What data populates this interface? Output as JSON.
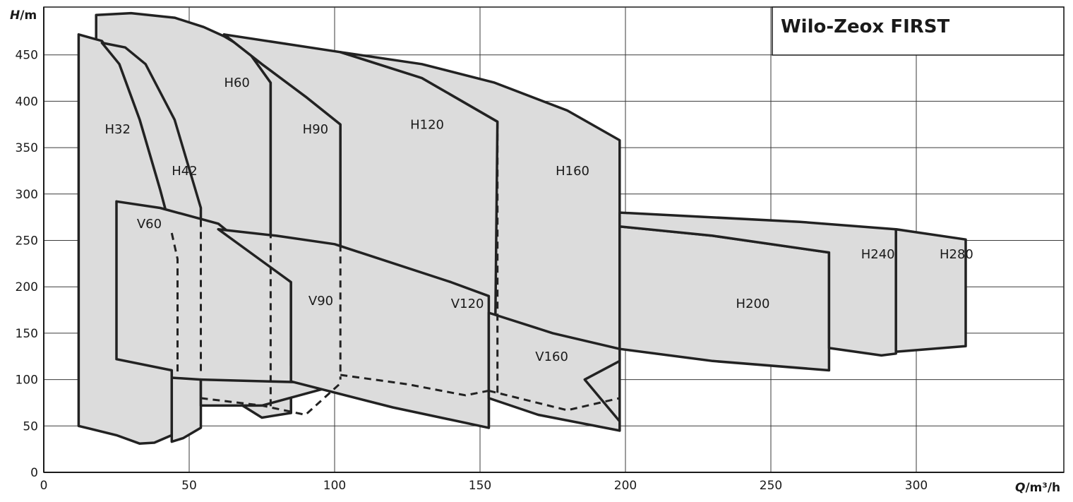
{
  "chart_data": {
    "type": "area",
    "title": "Wilo-Zeox FIRST",
    "xlabel_var": "Q",
    "xlabel_unit": "/m³/h",
    "ylabel_var": "H",
    "ylabel_unit": "/m",
    "xlim": [
      0,
      350
    ],
    "ylim": [
      0,
      500
    ],
    "xticks": [
      0,
      50,
      100,
      150,
      200,
      250,
      300
    ],
    "yticks": [
      0,
      50,
      100,
      150,
      200,
      250,
      300,
      350,
      400,
      450
    ],
    "grid": true,
    "regions": [
      {
        "name": "H60",
        "label_at": [
          62,
          420
        ],
        "points": [
          [
            18,
            442
          ],
          [
            18,
            493
          ],
          [
            30,
            495
          ],
          [
            45,
            490
          ],
          [
            55,
            480
          ],
          [
            62,
            470
          ],
          [
            70,
            455
          ],
          [
            78,
            420
          ],
          [
            78,
            70
          ],
          [
            54,
            80
          ],
          [
            54,
            104
          ],
          [
            44,
            104
          ],
          [
            44,
            230
          ],
          [
            35,
            330
          ],
          [
            25,
            420
          ],
          [
            18,
            442
          ]
        ]
      },
      {
        "name": "H90",
        "label_at": [
          89,
          370
        ],
        "points": [
          [
            62,
            472
          ],
          [
            70,
            455
          ],
          [
            78,
            420
          ],
          [
            78,
            70
          ],
          [
            85,
            64
          ],
          [
            85,
            205
          ],
          [
            102,
            180
          ],
          [
            102,
            375
          ],
          [
            90,
            405
          ],
          [
            75,
            440
          ],
          [
            62,
            472
          ]
        ]
      },
      {
        "name": "H120",
        "label_at": [
          126,
          375
        ],
        "points": [
          [
            62,
            472
          ],
          [
            102,
            453
          ],
          [
            130,
            425
          ],
          [
            156,
            378
          ],
          [
            156,
            80
          ],
          [
            102,
            96
          ],
          [
            102,
            375
          ],
          [
            90,
            405
          ],
          [
            75,
            440
          ],
          [
            62,
            472
          ]
        ]
      },
      {
        "name": "H160",
        "label_at": [
          176,
          325
        ],
        "points": [
          [
            102,
            453
          ],
          [
            130,
            440
          ],
          [
            155,
            420
          ],
          [
            180,
            390
          ],
          [
            198,
            358
          ],
          [
            198,
            45
          ],
          [
            185,
            62
          ],
          [
            155,
            82
          ],
          [
            156,
            378
          ],
          [
            130,
            425
          ],
          [
            102,
            453
          ]
        ]
      },
      {
        "name": "H32",
        "label_at": [
          21,
          370
        ],
        "points": [
          [
            12,
            50
          ],
          [
            12,
            472
          ],
          [
            20,
            465
          ],
          [
            26,
            440
          ],
          [
            33,
            380
          ],
          [
            40,
            305
          ],
          [
            44,
            258
          ],
          [
            44,
            40
          ],
          [
            38,
            32
          ],
          [
            33,
            31
          ],
          [
            25,
            40
          ],
          [
            12,
            50
          ]
        ]
      },
      {
        "name": "H42",
        "label_at": [
          44,
          325
        ],
        "points": [
          [
            20,
            463
          ],
          [
            28,
            458
          ],
          [
            35,
            440
          ],
          [
            45,
            380
          ],
          [
            54,
            285
          ],
          [
            54,
            48
          ],
          [
            48,
            37
          ],
          [
            44,
            33
          ],
          [
            44,
            258
          ],
          [
            40,
            305
          ],
          [
            33,
            380
          ],
          [
            26,
            440
          ],
          [
            20,
            463
          ]
        ]
      },
      {
        "name": "V60",
        "label_at": [
          32,
          268
        ],
        "points": [
          [
            25,
            292
          ],
          [
            40,
            285
          ],
          [
            60,
            268
          ],
          [
            85,
            205
          ],
          [
            85,
            64
          ],
          [
            75,
            59
          ],
          [
            54,
            100
          ],
          [
            44,
            102
          ],
          [
            44,
            110
          ],
          [
            25,
            122
          ],
          [
            25,
            292
          ]
        ]
      },
      {
        "name": "V90",
        "label_at": [
          91,
          185
        ],
        "points": [
          [
            54,
            100
          ],
          [
            102,
            96
          ],
          [
            120,
            90
          ],
          [
            153,
            48
          ],
          [
            153,
            80
          ],
          [
            102,
            96
          ],
          [
            85,
            115
          ],
          [
            85,
            205
          ],
          [
            102,
            180
          ],
          [
            97,
            145
          ],
          [
            102,
            95
          ],
          [
            75,
            72
          ],
          [
            54,
            72
          ],
          [
            54,
            100
          ]
        ]
      },
      {
        "name": "V120",
        "label_at": [
          140,
          182
        ],
        "points": [
          [
            60,
            262
          ],
          [
            80,
            255
          ],
          [
            100,
            246
          ],
          [
            140,
            205
          ],
          [
            153,
            190
          ],
          [
            153,
            48
          ],
          [
            120,
            70
          ],
          [
            85,
            98
          ],
          [
            85,
            205
          ],
          [
            60,
            262
          ]
        ]
      },
      {
        "name": "V160",
        "label_at": [
          169,
          125
        ],
        "points": [
          [
            153,
            172
          ],
          [
            175,
            150
          ],
          [
            198,
            133
          ],
          [
            198,
            120
          ],
          [
            186,
            100
          ],
          [
            198,
            55
          ],
          [
            198,
            45
          ],
          [
            170,
            62
          ],
          [
            153,
            80
          ],
          [
            153,
            172
          ]
        ]
      },
      {
        "name": "H200",
        "label_at": [
          238,
          182
        ],
        "points": [
          [
            198,
            265
          ],
          [
            230,
            255
          ],
          [
            270,
            237
          ],
          [
            270,
            110
          ],
          [
            230,
            120
          ],
          [
            198,
            133
          ],
          [
            198,
            265
          ]
        ]
      },
      {
        "name": "H240",
        "label_at": [
          281,
          235
        ],
        "points": [
          [
            198,
            280
          ],
          [
            260,
            270
          ],
          [
            293,
            262
          ],
          [
            293,
            128
          ],
          [
            288,
            126
          ],
          [
            270,
            134
          ],
          [
            270,
            237
          ],
          [
            230,
            255
          ],
          [
            198,
            265
          ],
          [
            198,
            280
          ]
        ]
      },
      {
        "name": "H280",
        "label_at": [
          308,
          235
        ],
        "points": [
          [
            293,
            262
          ],
          [
            317,
            251
          ],
          [
            317,
            136
          ],
          [
            293,
            130
          ],
          [
            293,
            262
          ]
        ]
      }
    ],
    "dashed_lines": [
      {
        "name": "dash-h42-upper",
        "points": [
          [
            44,
            258
          ],
          [
            46,
            230
          ],
          [
            46,
            105
          ]
        ]
      },
      {
        "name": "dash-h42-lower",
        "points": [
          [
            54,
            285
          ],
          [
            54,
            104
          ]
        ]
      },
      {
        "name": "dash-h60",
        "points": [
          [
            78,
            260
          ],
          [
            78,
            70
          ]
        ]
      },
      {
        "name": "dash-h90",
        "points": [
          [
            102,
            375
          ],
          [
            102,
            100
          ]
        ]
      },
      {
        "name": "dash-h120",
        "points": [
          [
            156,
            378
          ],
          [
            156,
            85
          ]
        ]
      },
      {
        "name": "dash-v90",
        "points": [
          [
            54,
            80
          ],
          [
            75,
            72
          ],
          [
            90,
            62
          ],
          [
            102,
            96
          ]
        ]
      },
      {
        "name": "dash-v120",
        "points": [
          [
            102,
            105
          ],
          [
            125,
            95
          ],
          [
            145,
            83
          ],
          [
            153,
            88
          ]
        ]
      },
      {
        "name": "dash-v160",
        "points": [
          [
            153,
            88
          ],
          [
            180,
            67
          ],
          [
            198,
            80
          ]
        ]
      }
    ]
  }
}
